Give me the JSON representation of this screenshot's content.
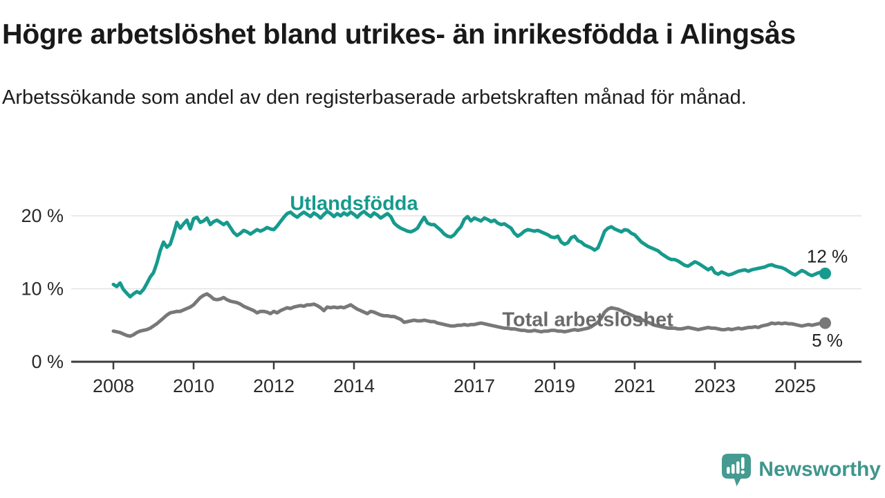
{
  "header": {
    "title": "Högre arbetslöshet bland utrikes- än inrikesfödda i Alingsås",
    "subtitle": "Arbetssökande som andel av den registerbaserade arbetskraften månad för månad."
  },
  "footer": {
    "brand": "Newsworthy",
    "logo_icon": "speech-bubble-bar-chart",
    "brand_color": "#3f968d",
    "logo_fill": "#459a91"
  },
  "chart_data": {
    "type": "line",
    "title": "Högre arbetslöshet bland utrikes- än inrikesfödda i Alingsås",
    "x_unit": "month",
    "x_start": "2008-01",
    "x_end": "2025-10",
    "x_ticks": [
      2008,
      2010,
      2012,
      2014,
      2017,
      2019,
      2021,
      2023,
      2025
    ],
    "y_ticks": [
      {
        "value": 0,
        "label": "0 %"
      },
      {
        "value": 10,
        "label": "10 %"
      },
      {
        "value": 20,
        "label": "20 %"
      }
    ],
    "ylim": [
      0,
      21.5
    ],
    "grid": true,
    "grid_color": "#e3e3e3",
    "axis_color": "#3b3b3b",
    "axis_text_color": "#2a2a2a",
    "end_value_color": "#1f1f1f",
    "series": [
      {
        "id": "utlandsfodda",
        "name": "Utlandsfödda",
        "color": "#169a8d",
        "label_color": "#149a8d",
        "label_year": 2014.0,
        "label_value": 20.8,
        "end_label": "12 %",
        "values": [
          10.6,
          10.3,
          10.8,
          9.9,
          9.4,
          8.9,
          9.3,
          9.6,
          9.4,
          9.9,
          10.7,
          11.6,
          12.2,
          13.5,
          15.2,
          16.4,
          15.7,
          16.1,
          17.5,
          19.1,
          18.3,
          18.9,
          19.4,
          18.2,
          19.6,
          19.8,
          19.1,
          19.3,
          19.7,
          18.8,
          19.2,
          19.4,
          19.1,
          18.8,
          19.1,
          18.4,
          17.7,
          17.3,
          17.6,
          18.0,
          17.8,
          17.5,
          17.8,
          18.1,
          17.9,
          18.1,
          18.4,
          18.2,
          18.1,
          18.6,
          19.2,
          19.8,
          20.3,
          20.5,
          20.1,
          19.8,
          20.2,
          20.5,
          20.2,
          19.9,
          20.4,
          20.1,
          19.7,
          20.2,
          20.6,
          20.3,
          19.9,
          20.3,
          20.0,
          20.4,
          20.1,
          20.5,
          20.2,
          19.8,
          20.3,
          20.6,
          20.2,
          19.9,
          20.4,
          20.1,
          19.7,
          20.0,
          20.3,
          19.9,
          19.0,
          18.6,
          18.3,
          18.1,
          17.9,
          17.8,
          18.0,
          18.3,
          19.1,
          19.8,
          19.0,
          18.8,
          18.8,
          18.4,
          18.0,
          17.5,
          17.2,
          17.1,
          17.4,
          18.0,
          18.5,
          19.5,
          19.9,
          19.3,
          19.7,
          19.5,
          19.3,
          19.7,
          19.5,
          19.2,
          19.4,
          19.0,
          18.8,
          18.9,
          18.6,
          18.3,
          17.6,
          17.2,
          17.5,
          17.9,
          18.1,
          18.0,
          17.9,
          18.0,
          17.8,
          17.6,
          17.4,
          17.1,
          17.0,
          17.2,
          16.4,
          16.1,
          16.3,
          17.0,
          17.2,
          16.6,
          16.4,
          16.0,
          15.8,
          15.6,
          15.3,
          15.6,
          16.7,
          17.9,
          18.3,
          18.5,
          18.2,
          18.0,
          17.8,
          18.1,
          18.0,
          17.6,
          17.4,
          16.9,
          16.4,
          16.1,
          15.8,
          15.6,
          15.4,
          15.2,
          14.8,
          14.5,
          14.2,
          14.0,
          14.0,
          13.8,
          13.5,
          13.2,
          13.1,
          13.4,
          13.7,
          13.5,
          13.2,
          12.9,
          12.6,
          12.9,
          12.2,
          12.0,
          12.3,
          12.1,
          11.9,
          12.0,
          12.2,
          12.4,
          12.5,
          12.6,
          12.4,
          12.6,
          12.7,
          12.8,
          12.9,
          13.0,
          13.2,
          13.3,
          13.1,
          13.0,
          12.9,
          12.7,
          12.4,
          12.1,
          11.9,
          12.2,
          12.5,
          12.3,
          12.0,
          11.8,
          12.0,
          12.2,
          12.3,
          12.1
        ]
      },
      {
        "id": "total",
        "name": "Total arbetslöshet",
        "color": "#787878",
        "label_color": "#6a6a6a",
        "label_year": 2019.83,
        "label_value": 4.9,
        "end_label": "5 %",
        "values": [
          4.2,
          4.1,
          4.0,
          3.8,
          3.6,
          3.5,
          3.7,
          4.0,
          4.2,
          4.3,
          4.4,
          4.6,
          4.9,
          5.2,
          5.6,
          6.0,
          6.4,
          6.7,
          6.8,
          6.9,
          6.9,
          7.1,
          7.3,
          7.5,
          7.8,
          8.3,
          8.8,
          9.1,
          9.3,
          9.0,
          8.6,
          8.5,
          8.6,
          8.8,
          8.5,
          8.3,
          8.2,
          8.1,
          7.9,
          7.6,
          7.4,
          7.2,
          7.0,
          6.7,
          6.9,
          6.9,
          6.8,
          6.6,
          6.9,
          6.7,
          7.0,
          7.2,
          7.4,
          7.3,
          7.5,
          7.6,
          7.7,
          7.6,
          7.8,
          7.8,
          7.9,
          7.7,
          7.4,
          7.0,
          7.5,
          7.4,
          7.5,
          7.4,
          7.5,
          7.4,
          7.6,
          7.8,
          7.5,
          7.2,
          7.0,
          6.8,
          6.6,
          6.9,
          6.8,
          6.6,
          6.4,
          6.3,
          6.3,
          6.2,
          6.2,
          6.0,
          5.8,
          5.4,
          5.5,
          5.6,
          5.7,
          5.6,
          5.6,
          5.7,
          5.6,
          5.5,
          5.5,
          5.3,
          5.2,
          5.1,
          5.0,
          4.9,
          4.9,
          5.0,
          5.0,
          5.1,
          5.0,
          5.1,
          5.1,
          5.2,
          5.3,
          5.2,
          5.1,
          5.0,
          4.9,
          4.8,
          4.7,
          4.6,
          4.6,
          4.5,
          4.5,
          4.4,
          4.3,
          4.3,
          4.2,
          4.2,
          4.3,
          4.2,
          4.1,
          4.2,
          4.2,
          4.3,
          4.3,
          4.2,
          4.2,
          4.1,
          4.2,
          4.3,
          4.4,
          4.3,
          4.4,
          4.5,
          4.6,
          4.8,
          5.1,
          5.4,
          6.0,
          6.8,
          7.2,
          7.4,
          7.3,
          7.2,
          7.0,
          6.8,
          6.6,
          6.4,
          6.2,
          6.0,
          5.8,
          5.6,
          5.4,
          5.2,
          5.0,
          4.9,
          4.8,
          4.7,
          4.6,
          4.6,
          4.6,
          4.5,
          4.5,
          4.6,
          4.7,
          4.6,
          4.5,
          4.4,
          4.5,
          4.6,
          4.7,
          4.6,
          4.6,
          4.5,
          4.4,
          4.4,
          4.5,
          4.4,
          4.5,
          4.6,
          4.5,
          4.6,
          4.7,
          4.7,
          4.8,
          4.7,
          4.9,
          5.0,
          5.1,
          5.3,
          5.2,
          5.3,
          5.2,
          5.3,
          5.2,
          5.2,
          5.1,
          5.0,
          4.9,
          5.0,
          5.1,
          5.0,
          5.1,
          5.2,
          5.3,
          5.3
        ]
      }
    ],
    "legend_position": "inline-labels"
  }
}
